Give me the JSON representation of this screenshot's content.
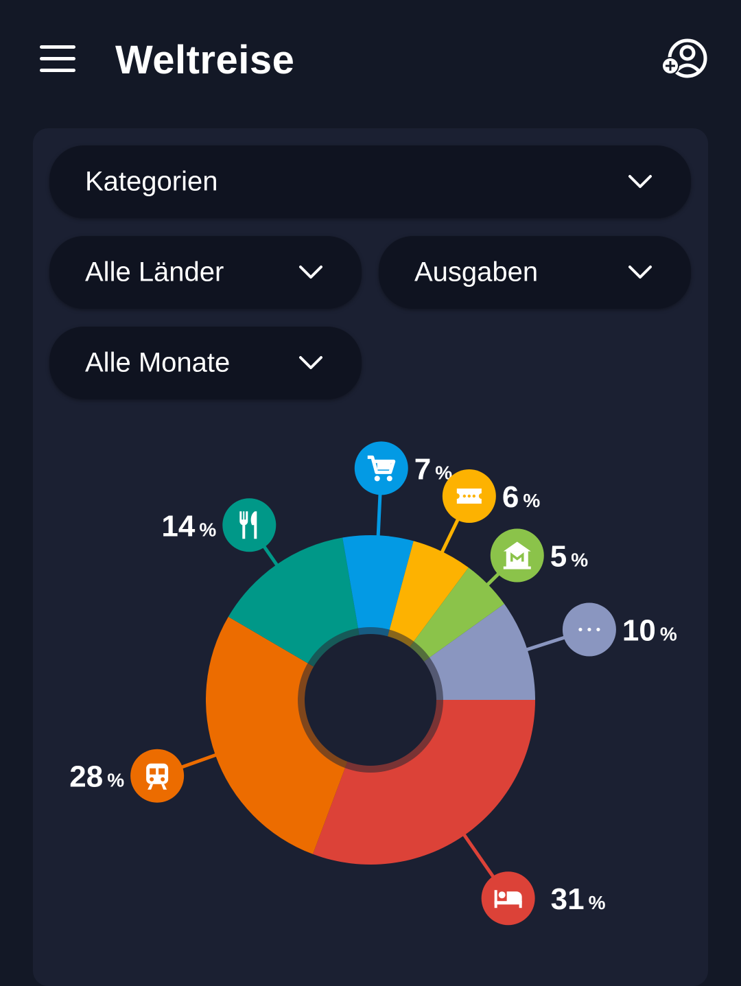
{
  "header": {
    "title": "Weltreise",
    "menu_icon": "menu-icon",
    "add_user_icon": "add-user-icon"
  },
  "filters": {
    "category": {
      "label": "Kategorien"
    },
    "country": {
      "label": "Alle Länder"
    },
    "type": {
      "label": "Ausgaben"
    },
    "month": {
      "label": "Alle Monate"
    }
  },
  "chart_data": {
    "type": "pie",
    "variant": "donut",
    "unit": "%",
    "slices": [
      {
        "label": "",
        "value": 31,
        "color": "#dc4238",
        "icon": "bed-icon"
      },
      {
        "label": "",
        "value": 28,
        "color": "#ec6c00",
        "icon": "train-icon"
      },
      {
        "label": "",
        "value": 14,
        "color": "#009888",
        "icon": "restaurant-icon"
      },
      {
        "label": "",
        "value": 7,
        "color": "#039ae4",
        "icon": "shopping-cart-icon"
      },
      {
        "label": "",
        "value": 6,
        "color": "#fdb201",
        "icon": "ticket-icon"
      },
      {
        "label": "",
        "value": 5,
        "color": "#8bc34a",
        "icon": "museum-icon"
      },
      {
        "label": "",
        "value": 10,
        "color": "#8a96c0",
        "icon": "more-icon"
      }
    ]
  }
}
